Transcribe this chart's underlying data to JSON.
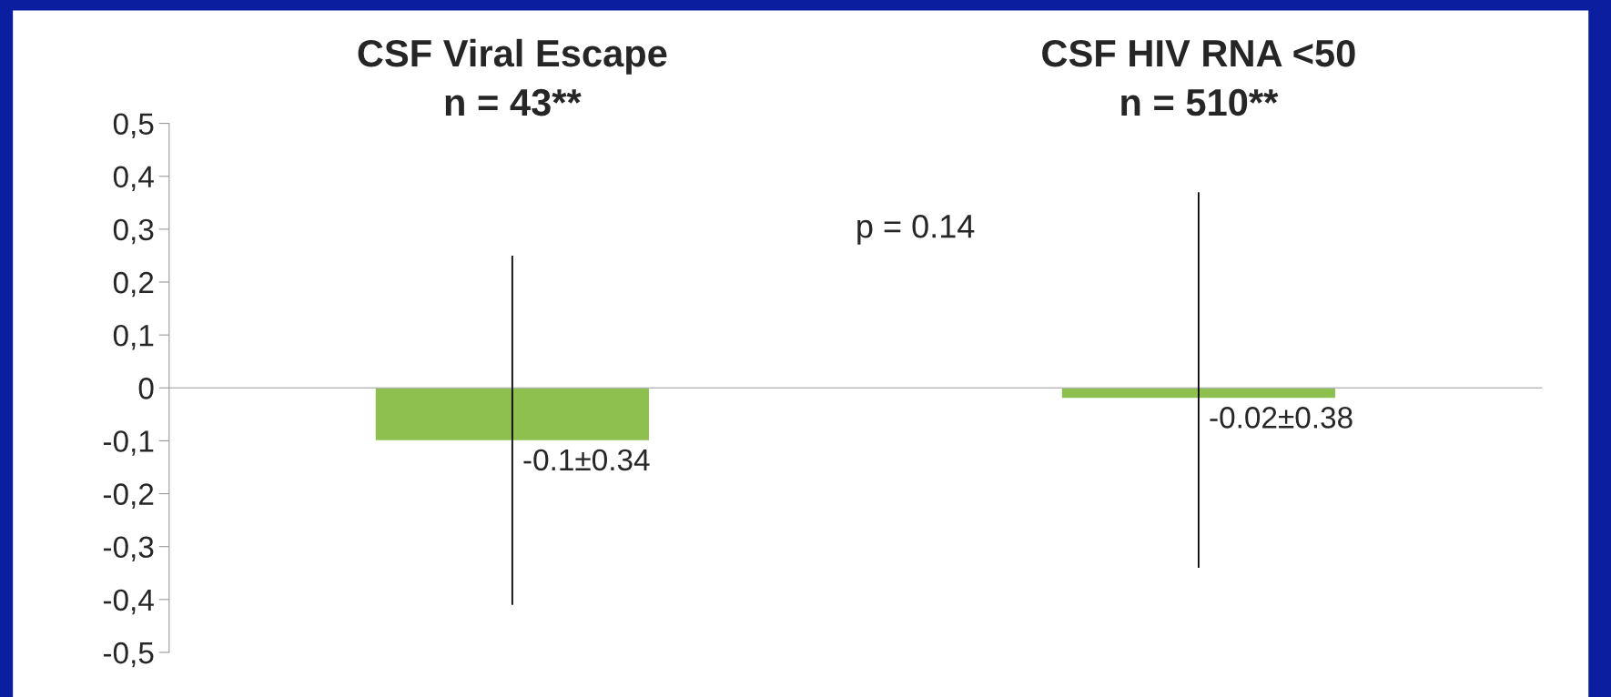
{
  "chart_data": {
    "type": "bar",
    "categories": [
      "CSF Viral Escape\nn = 43**",
      "CSF HIV RNA <50\nn = 510**"
    ],
    "values": [
      -0.1,
      -0.02
    ],
    "errors": [
      [
        -0.41,
        0.25
      ],
      [
        -0.34,
        0.37
      ]
    ],
    "value_labels": [
      "-0.1±0.34",
      "-0.02±0.38"
    ],
    "color": "#8dc04f",
    "ylim": [
      -0.5,
      0.5
    ],
    "yticks": [
      {
        "value": -0.5,
        "label": "-0,5"
      },
      {
        "value": -0.4,
        "label": "-0,4"
      },
      {
        "value": -0.3,
        "label": "-0,3"
      },
      {
        "value": -0.2,
        "label": "-0,2"
      },
      {
        "value": -0.1,
        "label": "-0,1"
      },
      0,
      {
        "value": 0.1,
        "label": "0,1"
      },
      {
        "value": 0.2,
        "label": "0,2"
      },
      {
        "value": 0.3,
        "label": "0,3"
      },
      {
        "value": 0.4,
        "label": "0,4"
      },
      {
        "value": 0.5,
        "label": "0,5"
      }
    ],
    "annotations": [
      "p = 0.14"
    ],
    "grid": false
  }
}
